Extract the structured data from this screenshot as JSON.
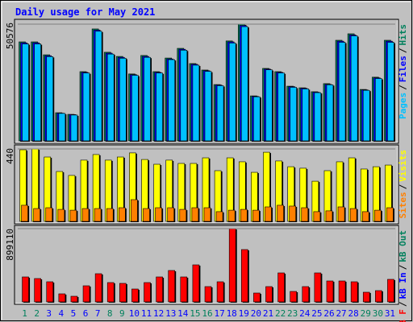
{
  "title": "Daily usage for May 2021",
  "categories": [
    "1",
    "2",
    "3",
    "4",
    "5",
    "6",
    "7",
    "8",
    "9",
    "10",
    "11",
    "12",
    "13",
    "14",
    "15",
    "16",
    "17",
    "18",
    "19",
    "20",
    "21",
    "22",
    "23",
    "24",
    "25",
    "26",
    "27",
    "28",
    "29",
    "30",
    "31"
  ],
  "category_colors": [
    "#00805c",
    "#00805c",
    "#0000ff",
    "#0000ff",
    "#0000ff",
    "#0000ff",
    "#0000ff",
    "#00805c",
    "#00805c",
    "#0000ff",
    "#0000ff",
    "#0000ff",
    "#0000ff",
    "#0000ff",
    "#00805c",
    "#00805c",
    "#0000ff",
    "#0000ff",
    "#0000ff",
    "#0000ff",
    "#0000ff",
    "#00805c",
    "#00805c",
    "#0000ff",
    "#0000ff",
    "#0000ff",
    "#0000ff",
    "#0000ff",
    "#00805c",
    "#00805c",
    "#0000ff"
  ],
  "legend_separator": "/",
  "chart_data": [
    {
      "type": "bar",
      "ylim": [
        0,
        50576
      ],
      "yticks": [
        50576
      ],
      "series": [
        {
          "name": "Pages",
          "color": "#00c0ff",
          "values": [
            42000,
            42000,
            36500,
            11900,
            11200,
            29400,
            47500,
            37600,
            35800,
            28400,
            36200,
            29400,
            35200,
            39300,
            32800,
            30100,
            23900,
            42400,
            49500,
            19100,
            30800,
            29400,
            23200,
            22500,
            20900,
            24300,
            42700,
            45500,
            21900,
            27000,
            42700
          ]
        },
        {
          "name": "Files",
          "color": "#0000ff",
          "values": [
            42500,
            42500,
            36900,
            12000,
            11400,
            29700,
            48000,
            38000,
            36200,
            28700,
            36600,
            29700,
            35500,
            39700,
            33200,
            30400,
            24200,
            42900,
            50000,
            19300,
            31100,
            29700,
            23500,
            22800,
            21100,
            24500,
            43200,
            45900,
            22100,
            27300,
            43200
          ]
        },
        {
          "name": "Hits",
          "color": "#00805c",
          "values": [
            42900,
            42900,
            37300,
            12200,
            11500,
            30000,
            48500,
            38400,
            36600,
            29000,
            37000,
            30000,
            35900,
            40100,
            33500,
            30700,
            24400,
            43300,
            50576,
            19500,
            31400,
            30000,
            23700,
            23000,
            21300,
            24800,
            43600,
            46400,
            22300,
            27600,
            43600
          ]
        }
      ]
    },
    {
      "type": "bar",
      "ylim": [
        0,
        440
      ],
      "yticks": [
        440
      ],
      "series": [
        {
          "name": "Sites",
          "color": "#ff8000",
          "values": [
            98,
            78,
            83,
            73,
            68,
            78,
            78,
            78,
            83,
            132,
            78,
            83,
            83,
            73,
            83,
            83,
            59,
            68,
            73,
            68,
            88,
            98,
            93,
            83,
            59,
            64,
            88,
            78,
            59,
            68,
            83
          ]
        },
        {
          "name": "Visits",
          "color": "#ffff00",
          "values": [
            435,
            440,
            391,
            303,
            279,
            372,
            406,
            372,
            391,
            416,
            376,
            347,
            372,
            352,
            352,
            386,
            308,
            386,
            362,
            298,
            420,
            367,
            332,
            323,
            244,
            308,
            362,
            386,
            318,
            332,
            342
          ]
        }
      ]
    },
    {
      "type": "bar",
      "ylim": [
        0,
        899110
      ],
      "yticks": [
        899110
      ],
      "series": [
        {
          "name": "kB F",
          "color": "#ff0000",
          "values": [
            306300,
            286500,
            247000,
            98800,
            69200,
            197600,
            345800,
            237100,
            227300,
            158100,
            237100,
            306300,
            385300,
            306300,
            454500,
            187700,
            247000,
            899110,
            642200,
            108700,
            187700,
            355700,
            128400,
            187700,
            355700,
            256900,
            256900,
            247000,
            118600,
            138300,
            276700
          ]
        },
        {
          "name": "kB In",
          "color": "#0000ff",
          "values": [
            0,
            0,
            0,
            0,
            0,
            0,
            0,
            0,
            0,
            0,
            0,
            0,
            0,
            0,
            0,
            0,
            0,
            0,
            0,
            0,
            0,
            0,
            0,
            0,
            0,
            0,
            0,
            0,
            0,
            0,
            0
          ]
        },
        {
          "name": "kB Out",
          "color": "#00805c",
          "values": [
            0,
            0,
            0,
            0,
            0,
            0,
            0,
            0,
            0,
            0,
            0,
            0,
            0,
            0,
            0,
            0,
            0,
            0,
            0,
            0,
            0,
            0,
            0,
            0,
            0,
            0,
            0,
            0,
            0,
            0,
            0
          ]
        }
      ]
    }
  ]
}
